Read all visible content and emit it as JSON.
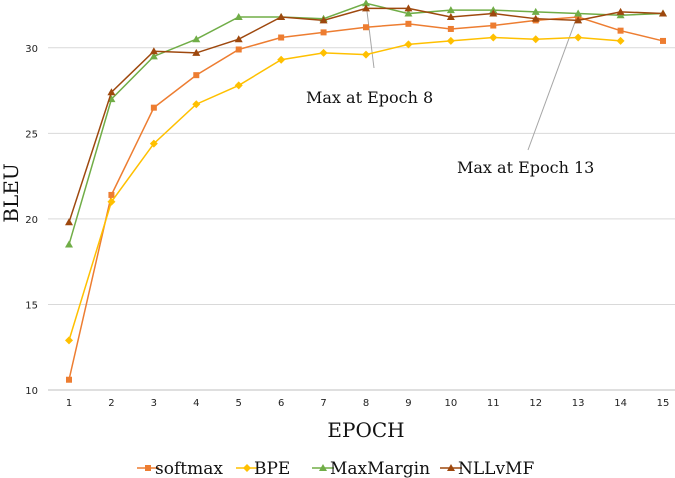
{
  "chart_data": {
    "type": "line",
    "title": "",
    "xlabel": "EPOCH",
    "ylabel": "BLEU",
    "x": [
      1,
      2,
      3,
      4,
      5,
      6,
      7,
      8,
      9,
      10,
      11,
      12,
      13,
      14,
      15
    ],
    "ylim": [
      10,
      32.5
    ],
    "yticks": [
      10,
      15,
      20,
      25,
      30
    ],
    "grid": "horizontal",
    "legend": "bottom",
    "series": [
      {
        "name": "softmax",
        "color": "#ED7D31",
        "marker": "square",
        "values": [
          10.6,
          21.4,
          26.5,
          28.4,
          29.9,
          30.6,
          30.9,
          31.2,
          31.4,
          31.1,
          31.3,
          31.6,
          31.8,
          31.0,
          30.4
        ]
      },
      {
        "name": "BPE",
        "color": "#FFC000",
        "marker": "diamond",
        "values": [
          12.9,
          21.0,
          24.4,
          26.7,
          27.8,
          29.3,
          29.7,
          29.6,
          30.2,
          30.4,
          30.6,
          30.5,
          30.6,
          30.4,
          null
        ]
      },
      {
        "name": "MaxMargin",
        "color": "#70AD47",
        "marker": "triangle",
        "values": [
          18.5,
          27.0,
          29.5,
          30.5,
          31.8,
          31.8,
          31.7,
          32.6,
          32.0,
          32.2,
          32.2,
          32.1,
          32.0,
          31.9,
          32.0
        ]
      },
      {
        "name": "NLLvMF",
        "color": "#9E480E",
        "marker": "triangle",
        "values": [
          19.8,
          27.4,
          29.8,
          29.7,
          30.5,
          31.8,
          31.6,
          32.3,
          32.3,
          31.8,
          32.0,
          31.7,
          31.6,
          32.1,
          32.0
        ]
      }
    ],
    "annotations": [
      {
        "text": "Max at Epoch 8",
        "x": 8
      },
      {
        "text": "Max at Epoch 13",
        "x": 13
      }
    ]
  }
}
